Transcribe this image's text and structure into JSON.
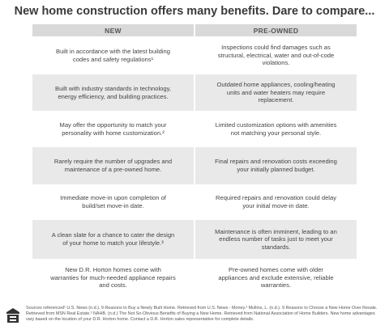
{
  "header": {
    "title": "New home construction offers many benefits. Dare to compare..."
  },
  "table": {
    "columns": [
      "NEW",
      "PRE-OWNED"
    ],
    "rows": [
      [
        "Built in accordance with the latest building codes and safety regulations¹",
        "Inspections could find damages such as structural, electrical, water and out-of-code violations."
      ],
      [
        "Built with industry standards in technology, energy efficiency, and building practices.",
        "Outdated home appliances, cooling/heating units and water heaters may require replacement."
      ],
      [
        "May offer the opportunity to match your personality with home customization.²",
        "Limited customization options with amenities not matching your personal style."
      ],
      [
        "Rarely require the number of upgrades and maintenance of a pre-owned home.",
        "Final repairs and renovation costs exceeding your initially planned budget."
      ],
      [
        "Immediate move-in upon completion of build/set move-in date.",
        "Required repairs and renovation could delay your initial move-in date."
      ],
      [
        "A clean slate for a chance to cater the design of your home to match your lifestyle.³",
        "Maintenance is often imminent, leading to an endless number of tasks just to meet your standards."
      ],
      [
        "New D.R. Horton homes come with warranties for much-needed appliance repairs and costs.",
        "Pre-owned homes come with older appliances and exclude extensive, reliable warranties."
      ]
    ]
  },
  "footer": {
    "text": "Sources referenced¹ U.S. News (n.d.). 9 Reasons to Buy a Newly Built Home. Retrieved from U.S. News - Money.² Mullins, L. (n.d.). 9 Reasons to Choose a New Home Over Resale. Retrieved from MSN Real Estate.³ NAHB. (n.d.) The Not So-Obvious Benefits of Buying a New Home. Retrieved from National Association of Home Builders. New home advantages vary based on the location of your D.R. Horton home. Contact a D.R. Horton sales representative for complete details."
  }
}
